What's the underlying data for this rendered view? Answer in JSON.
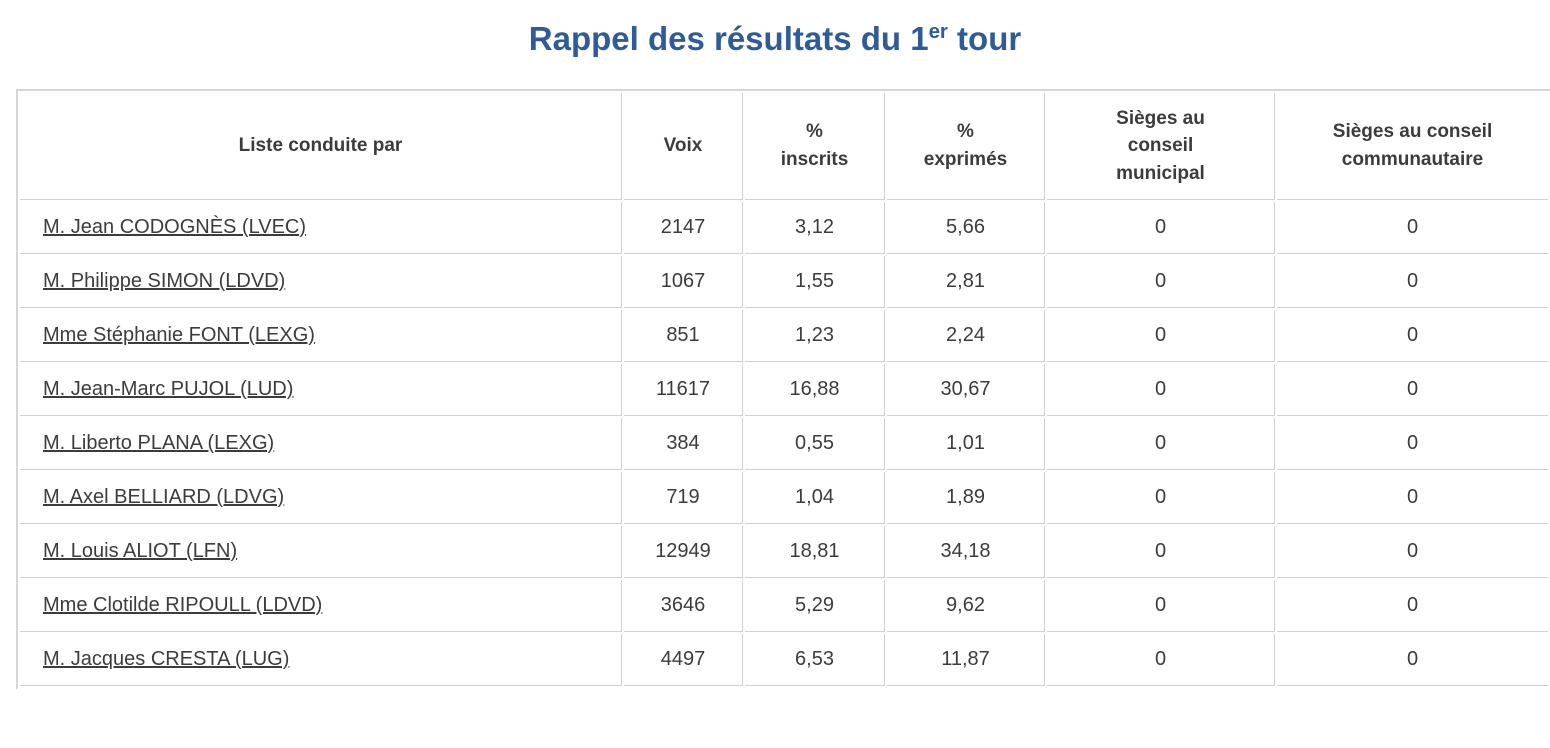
{
  "page": {
    "background": "#ffffff",
    "accent_blue": "#2f5b96",
    "text_color": "#3c3c3c",
    "border_color": "#d1d1d1"
  },
  "title": {
    "prefix": "Rappel des résultats du 1",
    "superscript": "er",
    "suffix": " tour"
  },
  "table": {
    "columns": [
      {
        "key": "liste",
        "label": "Liste conduite par"
      },
      {
        "key": "voix",
        "label": "Voix"
      },
      {
        "key": "pct_inscrits",
        "label": "%\ninscrits"
      },
      {
        "key": "pct_exprimes",
        "label": "%\nexprimés"
      },
      {
        "key": "sieges_municipal",
        "label": "Sièges au\nconseil\nmunicipal"
      },
      {
        "key": "sieges_communautaire",
        "label": "Sièges au conseil\ncommunautaire"
      }
    ],
    "rows": [
      {
        "liste": "M. Jean CODOGNÈS (LVEC)",
        "voix": "2147",
        "pct_inscrits": "3,12",
        "pct_exprimes": "5,66",
        "sieges_municipal": "0",
        "sieges_communautaire": "0"
      },
      {
        "liste": "M. Philippe SIMON (LDVD)",
        "voix": "1067",
        "pct_inscrits": "1,55",
        "pct_exprimes": "2,81",
        "sieges_municipal": "0",
        "sieges_communautaire": "0"
      },
      {
        "liste": "Mme Stéphanie FONT (LEXG)",
        "voix": "851",
        "pct_inscrits": "1,23",
        "pct_exprimes": "2,24",
        "sieges_municipal": "0",
        "sieges_communautaire": "0"
      },
      {
        "liste": "M. Jean-Marc PUJOL (LUD)",
        "voix": "11617",
        "pct_inscrits": "16,88",
        "pct_exprimes": "30,67",
        "sieges_municipal": "0",
        "sieges_communautaire": "0"
      },
      {
        "liste": "M. Liberto PLANA (LEXG)",
        "voix": "384",
        "pct_inscrits": "0,55",
        "pct_exprimes": "1,01",
        "sieges_municipal": "0",
        "sieges_communautaire": "0"
      },
      {
        "liste": "M. Axel BELLIARD (LDVG)",
        "voix": "719",
        "pct_inscrits": "1,04",
        "pct_exprimes": "1,89",
        "sieges_municipal": "0",
        "sieges_communautaire": "0"
      },
      {
        "liste": "M. Louis ALIOT (LFN)",
        "voix": "12949",
        "pct_inscrits": "18,81",
        "pct_exprimes": "34,18",
        "sieges_municipal": "0",
        "sieges_communautaire": "0"
      },
      {
        "liste": "Mme Clotilde RIPOULL (LDVD)",
        "voix": "3646",
        "pct_inscrits": "5,29",
        "pct_exprimes": "9,62",
        "sieges_municipal": "0",
        "sieges_communautaire": "0"
      },
      {
        "liste": "M. Jacques CRESTA (LUG)",
        "voix": "4497",
        "pct_inscrits": "6,53",
        "pct_exprimes": "11,87",
        "sieges_municipal": "0",
        "sieges_communautaire": "0"
      }
    ]
  }
}
